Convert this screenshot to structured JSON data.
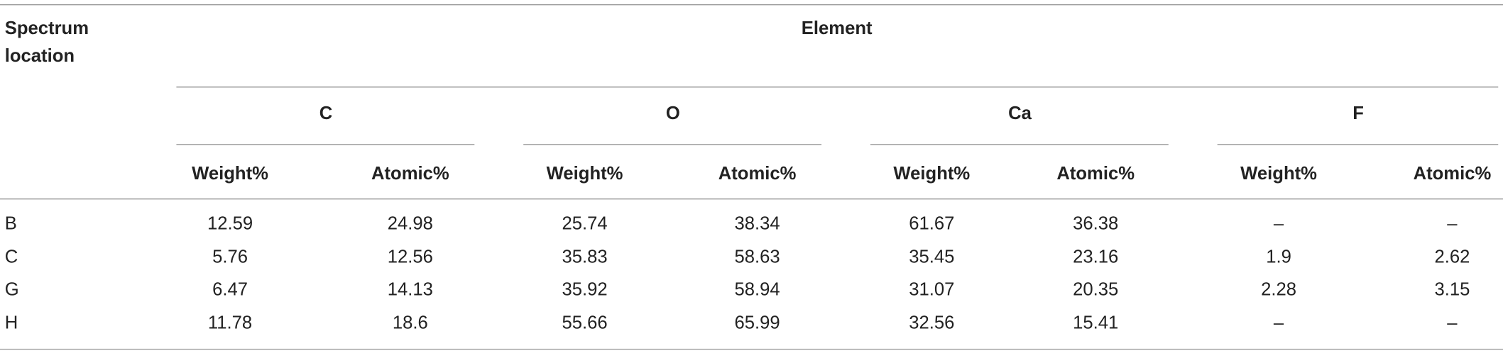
{
  "table": {
    "header": {
      "row_label": "Spectrum location",
      "group_title": "Element",
      "groups": [
        "C",
        "O",
        "Ca",
        "F"
      ],
      "subheaders": [
        "Weight%",
        "Atomic%",
        "Weight%",
        "Atomic%",
        "Weight%",
        "Atomic%",
        "Weight%",
        "Atomic%"
      ]
    },
    "rows": [
      [
        "B",
        12.59,
        24.98,
        25.74,
        38.34,
        61.67,
        36.38,
        "–",
        "–"
      ],
      [
        "C",
        5.76,
        12.56,
        35.83,
        58.63,
        35.45,
        23.16,
        1.9,
        2.62
      ],
      [
        "G",
        6.47,
        14.13,
        35.92,
        58.94,
        31.07,
        20.35,
        2.28,
        3.15
      ],
      [
        "H",
        11.78,
        18.6,
        55.66,
        65.99,
        32.56,
        15.41,
        "–",
        "–"
      ]
    ]
  }
}
